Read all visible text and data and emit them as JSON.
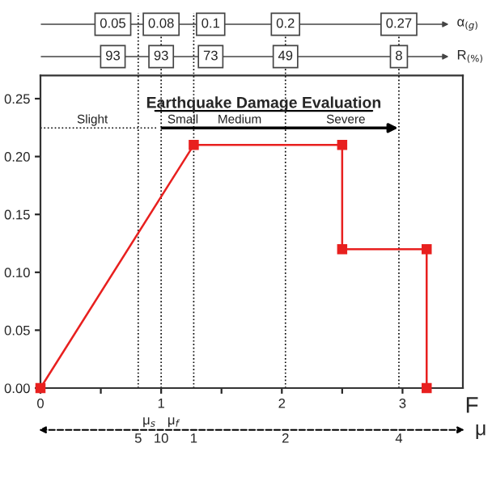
{
  "chart_data": {
    "type": "line",
    "xlabel": "F",
    "x": [
      0,
      1.27,
      2.5,
      2.5,
      3.2,
      3.2
    ],
    "series": [
      {
        "color": "#e8201f",
        "values": [
          0,
          0.21,
          0.21,
          0.12,
          0.12,
          0
        ]
      }
    ],
    "marker": "square",
    "line_style": "solid",
    "grid": false,
    "legend": false,
    "xlim": [
      0,
      3.5
    ],
    "ylim": [
      0,
      0.27
    ],
    "xticks": [
      0,
      {
        "value": 0.5,
        "label": null
      },
      1,
      {
        "value": 1.5,
        "label": null
      },
      2,
      {
        "value": 2.5,
        "label": null
      },
      3
    ],
    "yticks": [
      {
        "value": 0,
        "label": "0.00"
      },
      {
        "value": 0.05,
        "label": "0.05"
      },
      {
        "value": 0.1,
        "label": "0.10"
      },
      {
        "value": 0.15,
        "label": "0.15"
      },
      {
        "value": 0.2,
        "label": "0.20"
      },
      {
        "value": 0.25,
        "label": "0.25"
      }
    ],
    "ref_lines": [
      {
        "axis": "x",
        "value": 0.81,
        "color": "#000000",
        "line_style": "dotted"
      },
      {
        "axis": "x",
        "value": 1.0,
        "color": "#000000",
        "line_style": "dotted"
      },
      {
        "axis": "x",
        "value": 1.27,
        "color": "#000000",
        "line_style": "dotted"
      },
      {
        "axis": "x",
        "value": 2.03,
        "color": "#000000",
        "line_style": "dotted"
      },
      {
        "axis": "x",
        "value": 2.97,
        "color": "#000000",
        "line_style": "dotted"
      }
    ],
    "annotations": [
      "Earthquake Damage Evaluation",
      "Slight",
      "Small",
      "Medium",
      "Severe",
      "0.05",
      "0.08",
      "0.1",
      "0.2",
      "0.27",
      "α$_{(g)}$",
      "93",
      "93",
      "73",
      "49",
      "8",
      "R$_{(%)}$",
      "μ$_{s}$",
      "μ$_{f}$",
      "μ",
      "5",
      "10",
      "1",
      "2",
      "4"
    ]
  }
}
